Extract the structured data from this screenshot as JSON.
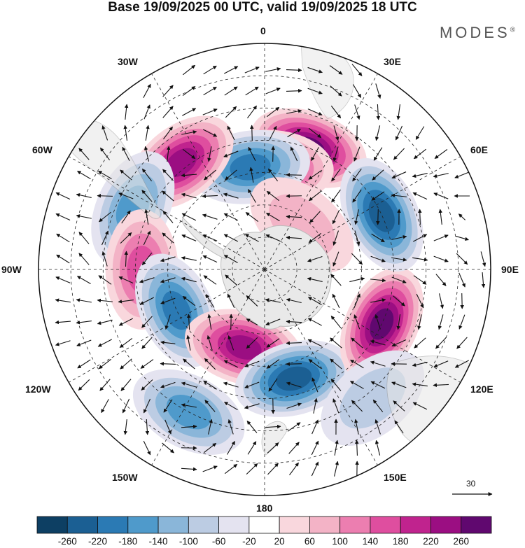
{
  "title": "Base 19/09/2025 00 UTC, valid 19/09/2025 18 UTC",
  "brand": "MODES",
  "brand_mark": "®",
  "lon_labels": {
    "n0": "0",
    "n30e": "30E",
    "n60e": "60E",
    "e90": "90E",
    "n120e": "120E",
    "n150e": "150E",
    "s180": "180",
    "n150w": "150W",
    "n120w": "120W",
    "w90": "90W",
    "n60w": "60W",
    "n30w": "30W"
  },
  "reference_vector": "30",
  "colorbar": {
    "ticks": [
      "-260",
      "-220",
      "-180",
      "-140",
      "-100",
      "-60",
      "-20",
      "20",
      "60",
      "100",
      "140",
      "180",
      "220",
      "260"
    ],
    "colors": [
      "#0d3f63",
      "#1b5f93",
      "#2b7ab4",
      "#4f9acb",
      "#8ab6d9",
      "#bcccE3",
      "#e4e3f0",
      "#ffffff",
      "#f9d7dd",
      "#f3b3c6",
      "#ec7eb0",
      "#df4e9f",
      "#c0238e",
      "#9b0e82",
      "#60086f"
    ]
  },
  "anomalies": [
    {
      "lon": 20,
      "lat": -50,
      "value": 260
    },
    {
      "lon": 5,
      "lat": -58,
      "value": 180
    },
    {
      "lon": -8,
      "lat": -58,
      "value": -200
    },
    {
      "lon": -38,
      "lat": -48,
      "value": 230
    },
    {
      "lon": -65,
      "lat": -45,
      "value": -150
    },
    {
      "lon": -90,
      "lat": -52,
      "value": 150
    },
    {
      "lon": -115,
      "lat": -60,
      "value": -200
    },
    {
      "lon": -165,
      "lat": -65,
      "value": 220
    },
    {
      "lon": -152,
      "lat": -40,
      "value": -140
    },
    {
      "lon": 165,
      "lat": -55,
      "value": -240
    },
    {
      "lon": 115,
      "lat": -50,
      "value": 260
    },
    {
      "lon": 65,
      "lat": -50,
      "value": -220
    },
    {
      "lon": 40,
      "lat": -72,
      "value": 60
    },
    {
      "lon": 140,
      "lat": -38,
      "value": -60
    }
  ]
}
